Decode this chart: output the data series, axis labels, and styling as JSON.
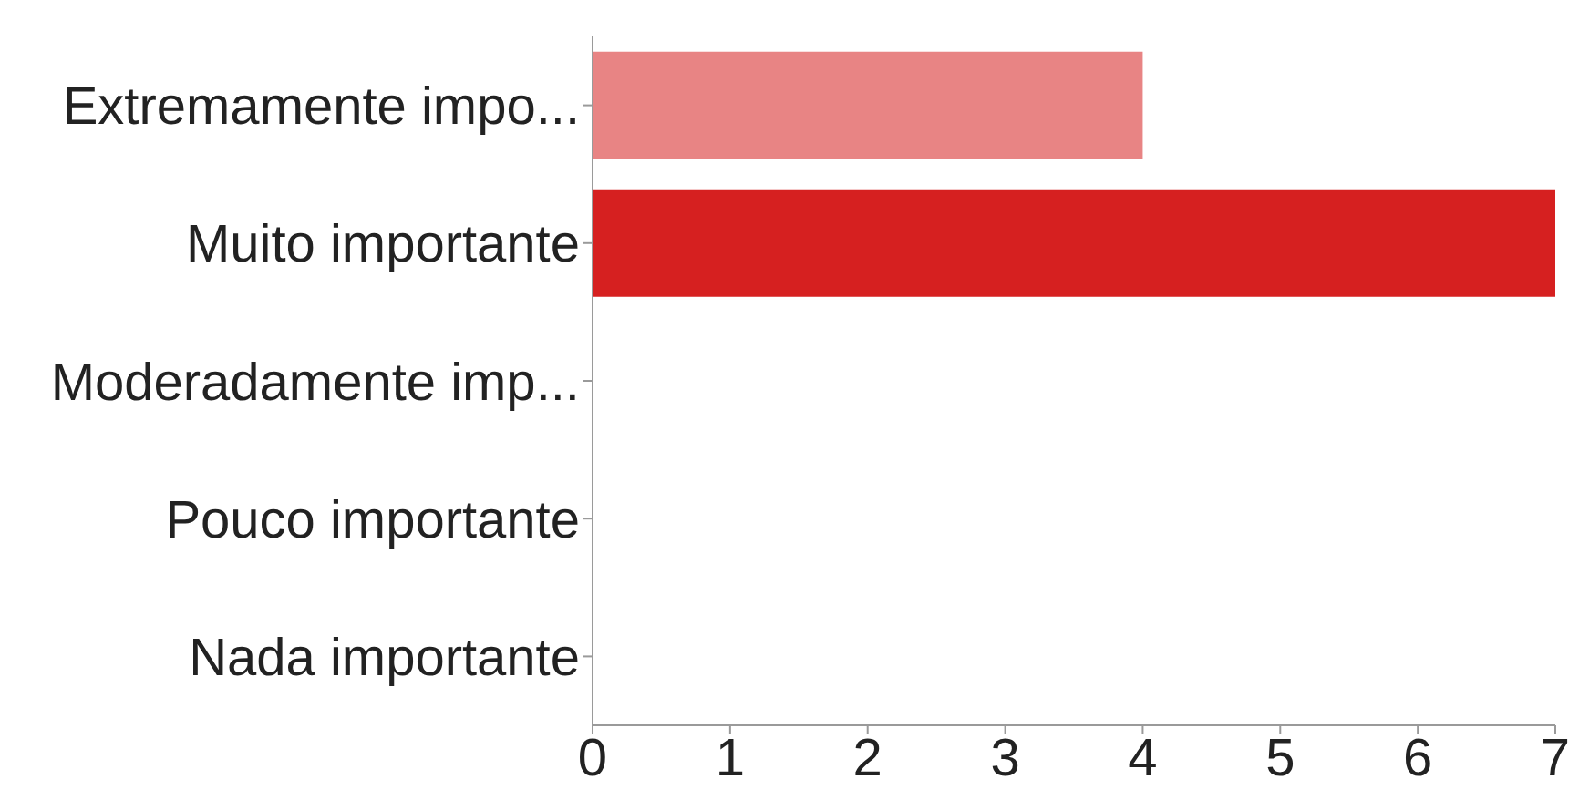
{
  "chart_data": {
    "type": "bar",
    "orientation": "horizontal",
    "categories": [
      "Extremamente impo...",
      "Muito importante",
      "Moderadamente imp...",
      "Pouco importante",
      "Nada importante"
    ],
    "values": [
      4,
      7,
      0,
      0,
      0
    ],
    "colors": [
      "#e88484",
      "#d62020",
      "#d62020",
      "#d62020",
      "#d62020"
    ],
    "xlim": [
      0,
      7
    ],
    "xticks": [
      0,
      1,
      2,
      3,
      4,
      5,
      6,
      7
    ]
  }
}
